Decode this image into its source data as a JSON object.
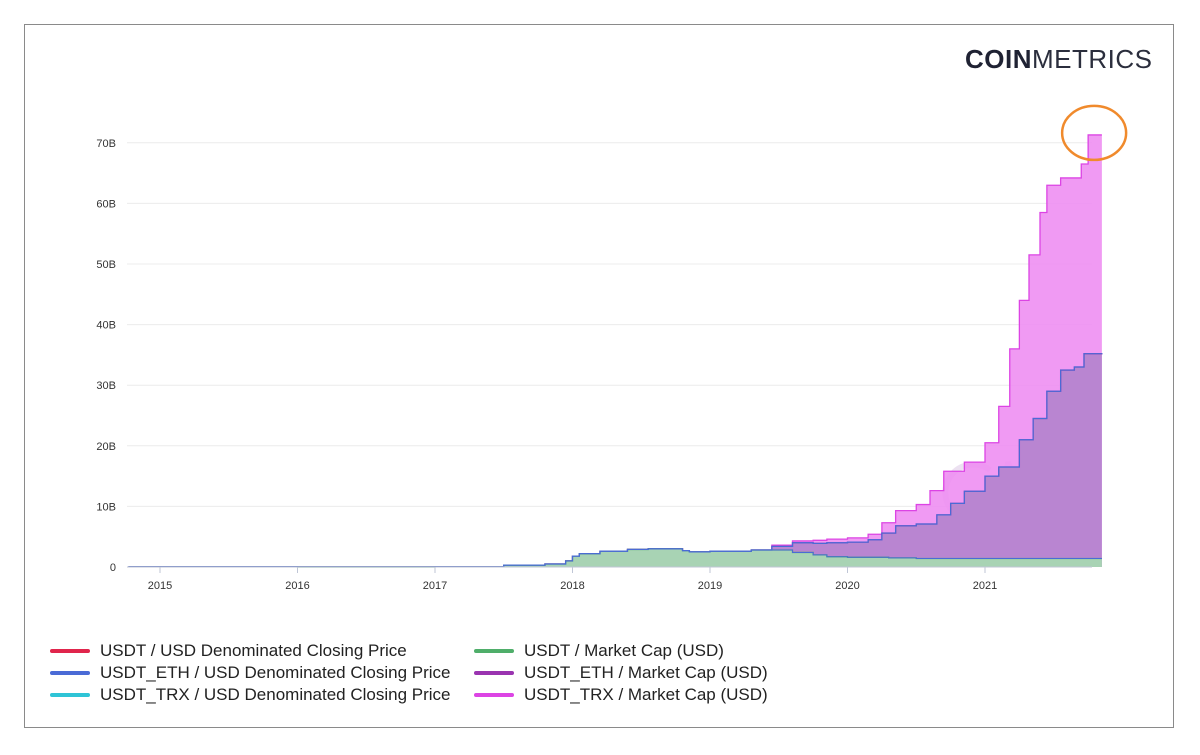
{
  "brand": {
    "logo_bold": "COIN",
    "logo_light": "METRICS"
  },
  "chart_data": {
    "type": "area",
    "x_ticks": [
      "2015",
      "2016",
      "2017",
      "2018",
      "2019",
      "2020",
      "2021"
    ],
    "y_ticks": [
      "0",
      "10B",
      "20B",
      "30B",
      "40B",
      "50B",
      "60B",
      "70B"
    ],
    "ylim": [
      0,
      72
    ],
    "y_unit": "B",
    "xlim": [
      2014.77,
      2021.85
    ],
    "grid": true,
    "legend_position": "bottom-left",
    "series": [
      {
        "name": "USDT / Market Cap (USD)",
        "color": "#4fae6a",
        "fill": "#a6dcb0",
        "x": [
          2014.77,
          2016.0,
          2017.0,
          2017.5,
          2017.8,
          2017.95,
          2018.0,
          2018.05,
          2018.2,
          2018.4,
          2018.55,
          2018.8,
          2018.85,
          2019.0,
          2019.3,
          2019.45,
          2019.6,
          2019.75,
          2019.85,
          2020.0,
          2020.3,
          2020.5,
          2021.0,
          2021.5,
          2021.85
        ],
        "values": [
          0.02,
          0.01,
          0.02,
          0.3,
          0.5,
          1.0,
          1.8,
          2.2,
          2.6,
          2.9,
          3.0,
          2.7,
          2.5,
          2.6,
          2.8,
          2.8,
          2.4,
          2.0,
          1.7,
          1.6,
          1.5,
          1.4,
          1.4,
          1.4,
          1.4
        ]
      },
      {
        "name": "USDT_ETH / Market Cap (USD)",
        "color": "#9a34b0",
        "fill": "#b383cd",
        "x": [
          2014.77,
          2017.0,
          2017.5,
          2017.8,
          2017.95,
          2018.0,
          2018.05,
          2018.2,
          2018.4,
          2018.55,
          2018.8,
          2018.85,
          2019.0,
          2019.3,
          2019.45,
          2019.6,
          2019.75,
          2019.85,
          2020.0,
          2020.15,
          2020.25,
          2020.35,
          2020.5,
          2020.65,
          2020.75,
          2020.85,
          2021.0,
          2021.1,
          2021.25,
          2021.35,
          2021.45,
          2021.55,
          2021.65,
          2021.72,
          2021.85
        ],
        "values": [
          0.02,
          0.02,
          0.3,
          0.5,
          1.0,
          1.8,
          2.2,
          2.6,
          2.9,
          3.0,
          2.7,
          2.5,
          2.6,
          2.8,
          3.4,
          4.0,
          3.9,
          4.0,
          4.1,
          4.5,
          5.6,
          6.8,
          7.1,
          8.6,
          10.5,
          12.5,
          15.0,
          16.5,
          21.0,
          24.5,
          29.0,
          32.5,
          33.0,
          35.2,
          35.3
        ]
      },
      {
        "name": "USDT_TRX / Market Cap (USD)",
        "color": "#dc44e4",
        "fill": "#ee8ff2",
        "x": [
          2014.77,
          2017.0,
          2017.5,
          2017.8,
          2017.95,
          2018.0,
          2018.05,
          2018.2,
          2018.4,
          2018.55,
          2018.8,
          2018.85,
          2019.0,
          2019.3,
          2019.45,
          2019.6,
          2019.75,
          2019.85,
          2020.0,
          2020.15,
          2020.25,
          2020.35,
          2020.5,
          2020.6,
          2020.7,
          2020.85,
          2021.0,
          2021.1,
          2021.18,
          2021.25,
          2021.32,
          2021.4,
          2021.45,
          2021.55,
          2021.65,
          2021.7,
          2021.75,
          2021.85
        ],
        "values": [
          0.02,
          0.02,
          0.3,
          0.5,
          1.0,
          1.8,
          2.2,
          2.6,
          2.9,
          3.0,
          2.7,
          2.5,
          2.6,
          2.8,
          3.6,
          4.3,
          4.4,
          4.6,
          4.8,
          5.4,
          7.3,
          9.3,
          10.3,
          12.6,
          15.8,
          17.3,
          20.5,
          26.5,
          36.0,
          44.0,
          51.5,
          58.5,
          63.0,
          64.2,
          64.2,
          66.5,
          71.3,
          71.3
        ]
      },
      {
        "name": "USDT / USD Denominated Closing Price",
        "color": "#e0254c",
        "values": []
      },
      {
        "name": "USDT_ETH / USD Denominated Closing Price",
        "color": "#4a6bd6",
        "values": []
      },
      {
        "name": "USDT_TRX / USD Denominated Closing Price",
        "color": "#2ec4d6",
        "values": []
      }
    ],
    "annotation": {
      "type": "circle",
      "color": "#f08a2c"
    }
  },
  "legend": {
    "left": [
      {
        "label": "USDT / USD Denominated Closing Price",
        "color": "#e0254c"
      },
      {
        "label": "USDT_ETH / USD Denominated Closing Price",
        "color": "#4a6bd6"
      },
      {
        "label": "USDT_TRX / USD Denominated Closing Price",
        "color": "#2ec4d6"
      }
    ],
    "right": [
      {
        "label": "USDT / Market Cap (USD)",
        "color": "#4fae6a"
      },
      {
        "label": "USDT_ETH / Market Cap (USD)",
        "color": "#9a34b0"
      },
      {
        "label": "USDT_TRX / Market Cap (USD)",
        "color": "#dc44e4"
      }
    ]
  }
}
